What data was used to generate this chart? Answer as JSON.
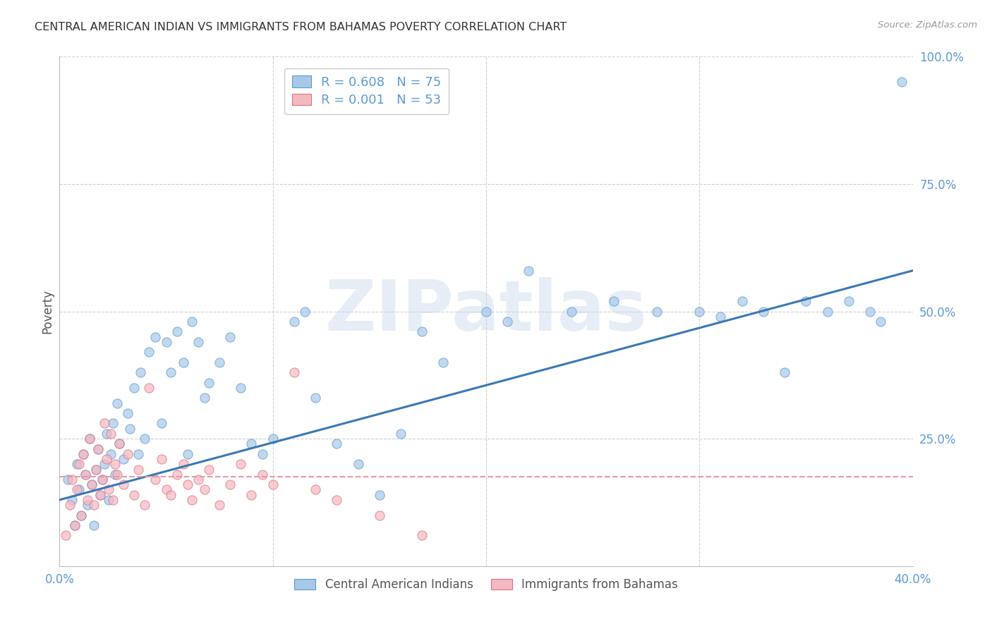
{
  "title": "CENTRAL AMERICAN INDIAN VS IMMIGRANTS FROM BAHAMAS POVERTY CORRELATION CHART",
  "source": "Source: ZipAtlas.com",
  "ylabel": "Poverty",
  "watermark": "ZIPatlas",
  "xlim": [
    0.0,
    0.4
  ],
  "ylim": [
    0.0,
    1.0
  ],
  "series1_color": "#a8c8e8",
  "series1_edge": "#5b9bd5",
  "series2_color": "#f4b8c0",
  "series2_edge": "#e07080",
  "series1_label": "Central American Indians",
  "series2_label": "Immigrants from Bahamas",
  "R1": "0.608",
  "N1": "75",
  "R2": "0.001",
  "N2": "53",
  "blue_line_color": "#3a78b5",
  "pink_line_color": "#e89aa5",
  "blue_line_x": [
    0.0,
    0.4
  ],
  "blue_line_y": [
    0.13,
    0.58
  ],
  "pink_line_x": [
    0.0,
    0.4
  ],
  "pink_line_y": [
    0.175,
    0.175
  ],
  "blue_scatter_x": [
    0.004,
    0.006,
    0.007,
    0.008,
    0.009,
    0.01,
    0.011,
    0.012,
    0.013,
    0.014,
    0.015,
    0.016,
    0.017,
    0.018,
    0.019,
    0.02,
    0.021,
    0.022,
    0.023,
    0.024,
    0.025,
    0.026,
    0.027,
    0.028,
    0.03,
    0.032,
    0.033,
    0.035,
    0.037,
    0.038,
    0.04,
    0.042,
    0.045,
    0.048,
    0.05,
    0.052,
    0.055,
    0.058,
    0.06,
    0.062,
    0.065,
    0.068,
    0.07,
    0.075,
    0.08,
    0.085,
    0.09,
    0.095,
    0.1,
    0.11,
    0.115,
    0.12,
    0.13,
    0.14,
    0.15,
    0.16,
    0.17,
    0.18,
    0.2,
    0.21,
    0.22,
    0.24,
    0.26,
    0.28,
    0.3,
    0.31,
    0.32,
    0.33,
    0.34,
    0.35,
    0.36,
    0.37,
    0.38,
    0.385,
    0.395
  ],
  "blue_scatter_y": [
    0.17,
    0.13,
    0.08,
    0.2,
    0.15,
    0.1,
    0.22,
    0.18,
    0.12,
    0.25,
    0.16,
    0.08,
    0.19,
    0.23,
    0.14,
    0.17,
    0.2,
    0.26,
    0.13,
    0.22,
    0.28,
    0.18,
    0.32,
    0.24,
    0.21,
    0.3,
    0.27,
    0.35,
    0.22,
    0.38,
    0.25,
    0.42,
    0.45,
    0.28,
    0.44,
    0.38,
    0.46,
    0.4,
    0.22,
    0.48,
    0.44,
    0.33,
    0.36,
    0.4,
    0.45,
    0.35,
    0.24,
    0.22,
    0.25,
    0.48,
    0.5,
    0.33,
    0.24,
    0.2,
    0.14,
    0.26,
    0.46,
    0.4,
    0.5,
    0.48,
    0.58,
    0.5,
    0.52,
    0.5,
    0.5,
    0.49,
    0.52,
    0.5,
    0.38,
    0.52,
    0.5,
    0.52,
    0.5,
    0.48,
    0.95
  ],
  "pink_scatter_x": [
    0.003,
    0.005,
    0.006,
    0.007,
    0.008,
    0.009,
    0.01,
    0.011,
    0.012,
    0.013,
    0.014,
    0.015,
    0.016,
    0.017,
    0.018,
    0.019,
    0.02,
    0.021,
    0.022,
    0.023,
    0.024,
    0.025,
    0.026,
    0.027,
    0.028,
    0.03,
    0.032,
    0.035,
    0.037,
    0.04,
    0.042,
    0.045,
    0.048,
    0.05,
    0.052,
    0.055,
    0.058,
    0.06,
    0.062,
    0.065,
    0.068,
    0.07,
    0.075,
    0.08,
    0.085,
    0.09,
    0.095,
    0.1,
    0.11,
    0.12,
    0.13,
    0.15,
    0.17
  ],
  "pink_scatter_y": [
    0.06,
    0.12,
    0.17,
    0.08,
    0.15,
    0.2,
    0.1,
    0.22,
    0.18,
    0.13,
    0.25,
    0.16,
    0.12,
    0.19,
    0.23,
    0.14,
    0.17,
    0.28,
    0.21,
    0.15,
    0.26,
    0.13,
    0.2,
    0.18,
    0.24,
    0.16,
    0.22,
    0.14,
    0.19,
    0.12,
    0.35,
    0.17,
    0.21,
    0.15,
    0.14,
    0.18,
    0.2,
    0.16,
    0.13,
    0.17,
    0.15,
    0.19,
    0.12,
    0.16,
    0.2,
    0.14,
    0.18,
    0.16,
    0.38,
    0.15,
    0.13,
    0.1,
    0.06
  ]
}
